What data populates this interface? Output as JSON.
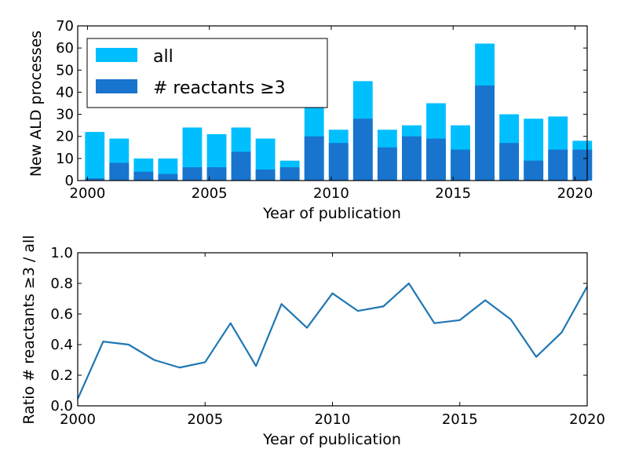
{
  "chart_data": [
    {
      "type": "bar",
      "stacking": "overlay",
      "x": [
        2000,
        2001,
        2002,
        2003,
        2004,
        2005,
        2006,
        2007,
        2008,
        2009,
        2010,
        2011,
        2012,
        2013,
        2014,
        2015,
        2016,
        2017,
        2018,
        2019,
        2020
      ],
      "series": [
        {
          "name": "all",
          "color": "#00bfff",
          "values": [
            22,
            19,
            10,
            10,
            24,
            21,
            24,
            19,
            9,
            37,
            23,
            45,
            23,
            25,
            35,
            25,
            62,
            30,
            28,
            29,
            18
          ]
        },
        {
          "name": "# reactants ≥3",
          "color": "#1874cd",
          "values": [
            1,
            8,
            4,
            3,
            6,
            6,
            13,
            5,
            6,
            20,
            17,
            28,
            15,
            20,
            19,
            14,
            43,
            17,
            9,
            14,
            14
          ]
        }
      ],
      "xlabel": "Year of publication",
      "ylabel": "New ALD processes",
      "xlim": [
        1999.6,
        2020.5
      ],
      "ylim": [
        0,
        70
      ],
      "xticks": [
        "2000",
        "2005",
        "2010",
        "2015",
        "2020"
      ],
      "yticks": [
        "0",
        "10",
        "20",
        "30",
        "40",
        "50",
        "60",
        "70"
      ],
      "legend": "top-left",
      "grid": false
    },
    {
      "type": "line",
      "color": "#1f77b4",
      "x": [
        2000,
        2001,
        2002,
        2003,
        2004,
        2005,
        2006,
        2007,
        2008,
        2009,
        2010,
        2011,
        2012,
        2013,
        2014,
        2015,
        2016,
        2017,
        2018,
        2019,
        2020
      ],
      "y": [
        0.045,
        0.42,
        0.4,
        0.3,
        0.25,
        0.285,
        0.54,
        0.26,
        0.665,
        0.51,
        0.735,
        0.62,
        0.65,
        0.8,
        0.54,
        0.56,
        0.69,
        0.565,
        0.32,
        0.48,
        0.78
      ],
      "xlabel": "Year of publication",
      "ylabel": "Ratio # reactants ≥3 / all",
      "xlim": [
        2000,
        2020
      ],
      "ylim": [
        0,
        1
      ],
      "xticks": [
        "2000",
        "2005",
        "2010",
        "2015",
        "2020"
      ],
      "yticks": [
        "0.0",
        "0.2",
        "0.4",
        "0.6",
        "0.8",
        "1.0"
      ],
      "grid": false
    }
  ]
}
